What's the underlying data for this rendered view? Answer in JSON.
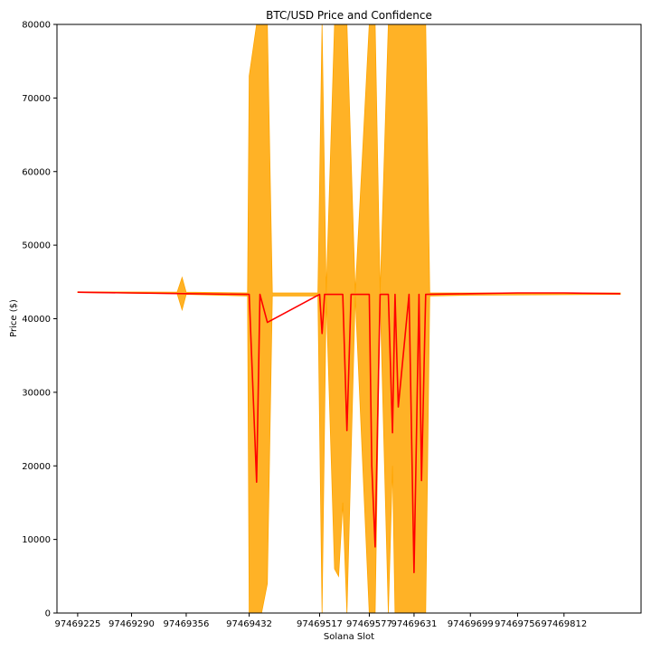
{
  "chart_data": {
    "type": "line",
    "title": "BTC/USD Price and Confidence",
    "xlabel": "Solana Slot",
    "ylabel": "Price ($)",
    "ylim": [
      0,
      80000
    ],
    "yticks": [
      0,
      10000,
      20000,
      30000,
      40000,
      50000,
      60000,
      70000,
      80000
    ],
    "xticks": [
      "97469225",
      "97469290",
      "97469356",
      "97469432",
      "97469517",
      "97469577",
      "97469631",
      "97469699",
      "97469756",
      "97469812"
    ],
    "grid": false,
    "colors": {
      "price_line": "#ff0000",
      "confidence_band": "#ffa500"
    },
    "series": [
      {
        "kind": "line",
        "x": [
          "97469225",
          "97469290",
          "97469356",
          "97469432",
          "97469441",
          "97469445",
          "97469454",
          "97469517",
          "97469520",
          "97469523",
          "97469545",
          "97469550",
          "97469555",
          "97469560",
          "97469577",
          "97469580",
          "97469584",
          "97469590",
          "97469600",
          "97469605",
          "97469608",
          "97469612",
          "97469625",
          "97469631",
          "97469637",
          "97469640",
          "97469645",
          "97469699",
          "97469756",
          "97469812",
          "97469880"
        ],
        "values": [
          43600,
          43500,
          43400,
          43300,
          17800,
          43300,
          39500,
          43300,
          38000,
          43300,
          43300,
          24800,
          43300,
          43300,
          43300,
          20000,
          9000,
          43300,
          43300,
          24500,
          43300,
          28000,
          43300,
          5500,
          43300,
          18000,
          43300,
          43400,
          43500,
          43500,
          43400
        ]
      },
      {
        "kind": "band",
        "x": [
          "97469225",
          "97469345",
          "97469351",
          "97469356",
          "97469430",
          "97469432",
          "97469441",
          "97469447",
          "97469454",
          "97469460",
          "97469515",
          "97469520",
          "97469525",
          "97469535",
          "97469540",
          "97469545",
          "97469550",
          "97469560",
          "97469577",
          "97469580",
          "97469584",
          "97469590",
          "97469600",
          "97469605",
          "97469608",
          "97469612",
          "97469616",
          "97469620",
          "97469625",
          "97469631",
          "97469637",
          "97469640",
          "97469645",
          "97469650",
          "97469699",
          "97469880"
        ],
        "upper": [
          43650,
          43600,
          45600,
          43600,
          43500,
          73000,
          80000,
          80000,
          80000,
          43500,
          43500,
          80000,
          43500,
          80000,
          80000,
          80000,
          80000,
          43500,
          80000,
          80000,
          80000,
          43500,
          80000,
          80000,
          80000,
          80000,
          80000,
          80000,
          80000,
          80000,
          80000,
          80000,
          80000,
          43500,
          43500,
          43500
        ],
        "lower": [
          43550,
          43400,
          41200,
          43300,
          43100,
          0,
          0,
          0,
          4000,
          43100,
          43100,
          0,
          43100,
          6000,
          5000,
          15000,
          0,
          43100,
          0,
          0,
          0,
          43100,
          0,
          20000,
          0,
          0,
          0,
          0,
          0,
          0,
          0,
          0,
          0,
          43100,
          43200,
          43300
        ]
      }
    ]
  }
}
